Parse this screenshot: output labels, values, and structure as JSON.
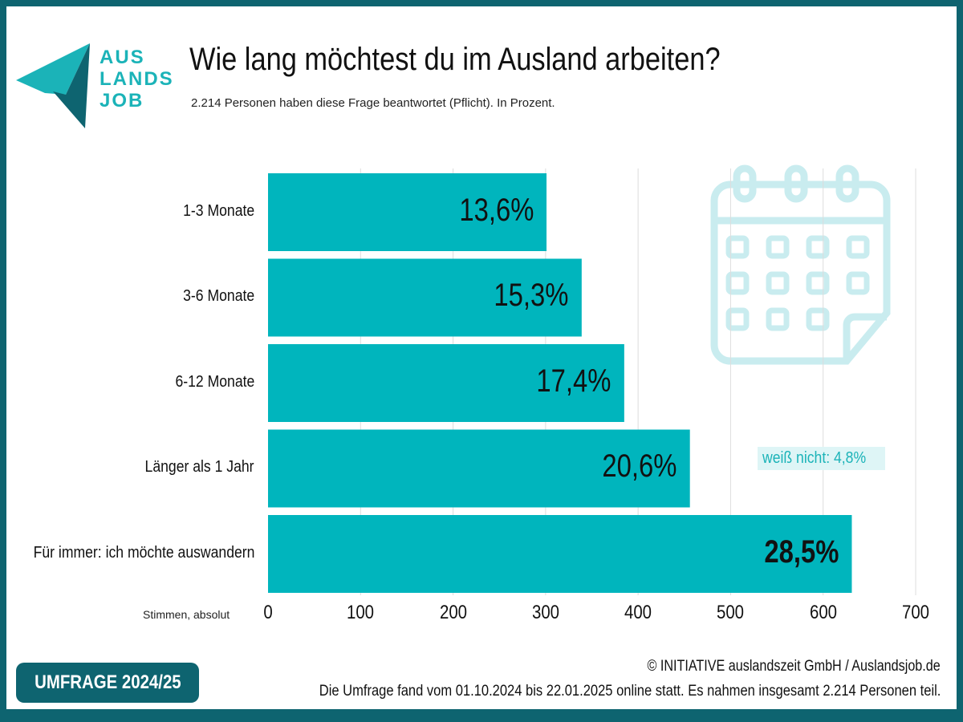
{
  "logo": {
    "text": [
      "AUS",
      "LANDS",
      "JOB"
    ]
  },
  "header": {
    "title": "Wie lang möchtest du im Ausland arbeiten?",
    "subtitle": "2.214 Personen haben diese Frage beantwortet (Pflicht). In Prozent."
  },
  "chart_data": {
    "type": "bar",
    "orientation": "horizontal",
    "categories": [
      "1-3 Monate",
      "3-6 Monate",
      "6-12 Monate",
      "Länger als 1 Jahr",
      "Für immer: ich möchte auswandern"
    ],
    "values": [
      301,
      339,
      385,
      456,
      631
    ],
    "data_labels": [
      "13,6%",
      "15,3%",
      "17,4%",
      "20,6%",
      "28,5%"
    ],
    "xlabel": "Stimmen, absolut",
    "xlim": [
      0,
      700
    ],
    "xticks": [
      "0",
      "100",
      "200",
      "300",
      "400",
      "500",
      "600",
      "700"
    ],
    "grid": true,
    "annotation": "weiß nicht: 4,8%",
    "bar_color": "#00b5bd"
  },
  "footer": {
    "badge": "UMFRAGE 2024/25",
    "copyright": "© INITIATIVE auslandszeit GmbH / Auslandsjob.de",
    "note": "Die Umfrage fand vom 01.10.2024 bis 22.01.2025 online statt. Es nahmen insgesamt 2.214 Personen teil."
  },
  "icons": {
    "calendar": "calendar-icon"
  }
}
